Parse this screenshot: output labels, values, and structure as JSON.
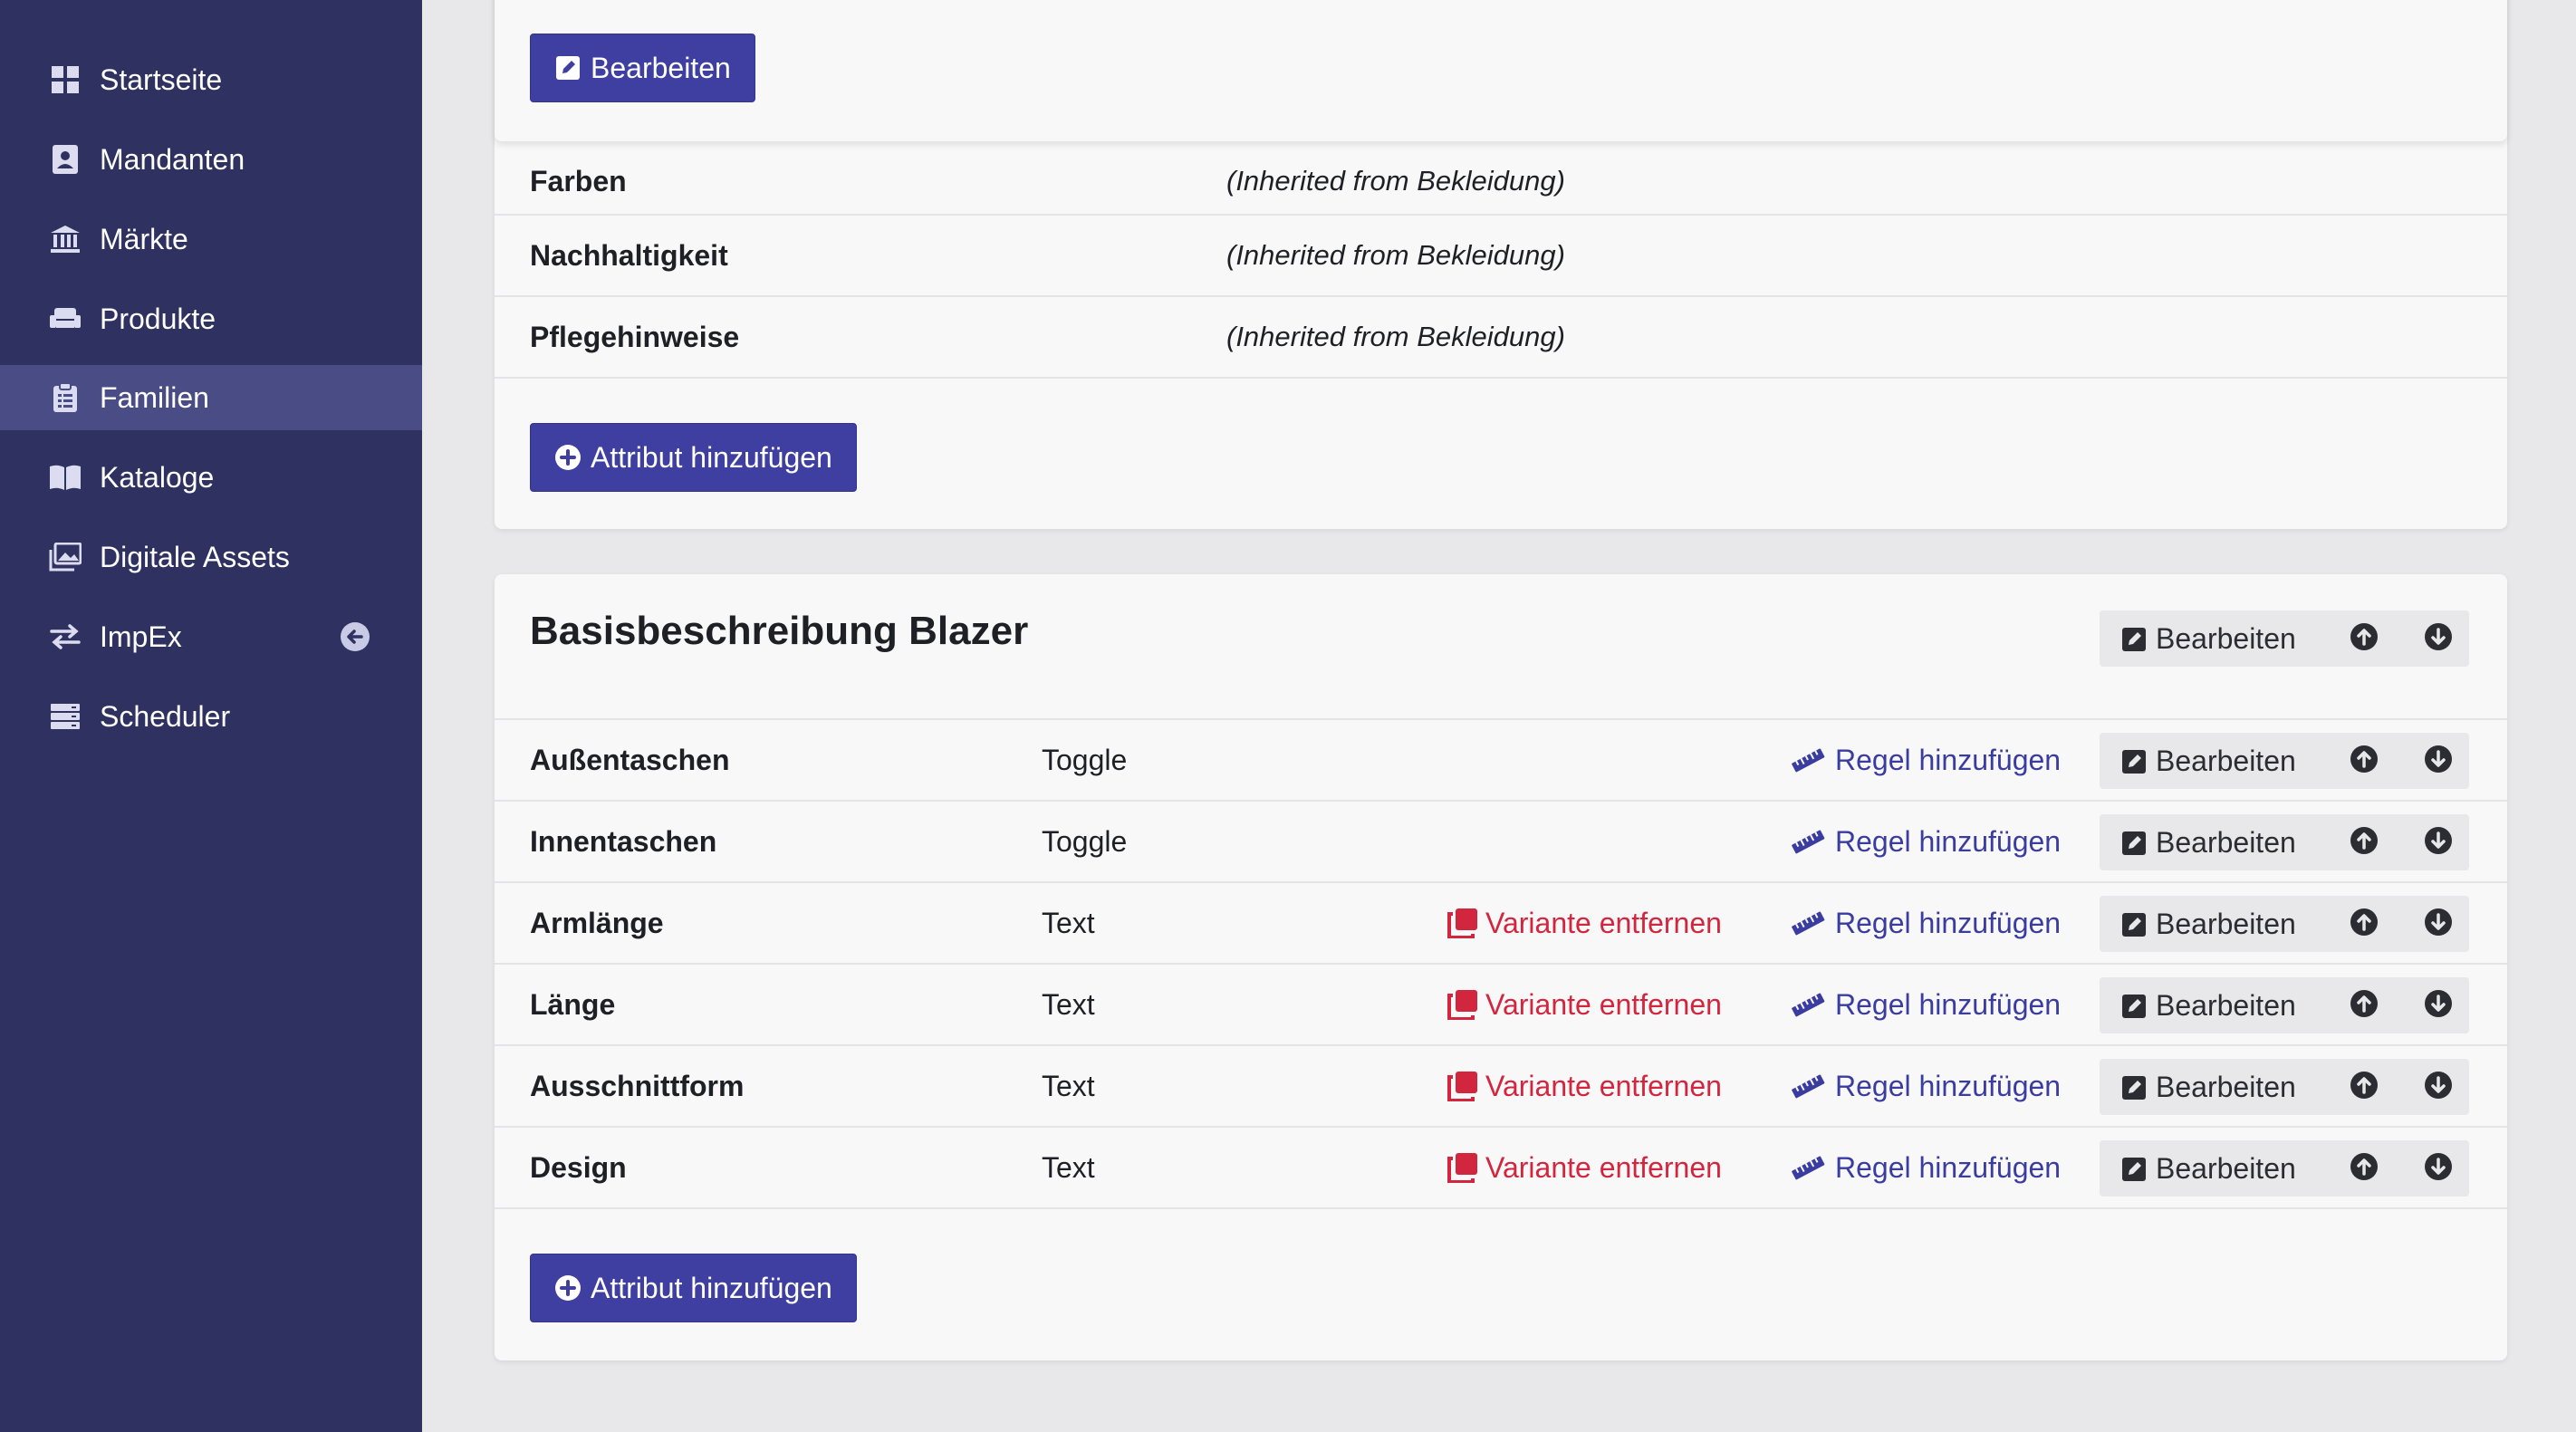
{
  "sidebar": {
    "items": [
      {
        "label": "Startseite",
        "icon": "dashboard-icon"
      },
      {
        "label": "Mandanten",
        "icon": "contact-book-icon"
      },
      {
        "label": "Märkte",
        "icon": "bank-icon"
      },
      {
        "label": "Produkte",
        "icon": "sofa-icon"
      },
      {
        "label": "Familien",
        "icon": "clipboard-list-icon",
        "active": true
      },
      {
        "label": "Kataloge",
        "icon": "open-book-icon"
      },
      {
        "label": "Digitale Assets",
        "icon": "images-icon"
      },
      {
        "label": "ImpEx",
        "icon": "arrows-exchange-icon",
        "collapse_icon": "arrow-circle-left-icon"
      },
      {
        "label": "Scheduler",
        "icon": "server-icon"
      }
    ]
  },
  "section1": {
    "edit_label": "Bearbeiten",
    "rows": [
      {
        "name": "Farben",
        "note": "(Inherited from Bekleidung)"
      },
      {
        "name": "Nachhaltigkeit",
        "note": "(Inherited from Bekleidung)"
      },
      {
        "name": "Pflegehinweise",
        "note": "(Inherited from Bekleidung)"
      }
    ],
    "add_attribute_label": "Attribut hinzufügen"
  },
  "section2": {
    "title": "Basisbeschreibung Blazer",
    "edit_label": "Bearbeiten",
    "rows": [
      {
        "name": "Außentaschen",
        "type": "Toggle",
        "remove_variant": "",
        "add_rule": "Regel hinzufügen",
        "edit": "Bearbeiten"
      },
      {
        "name": "Innentaschen",
        "type": "Toggle",
        "remove_variant": "",
        "add_rule": "Regel hinzufügen",
        "edit": "Bearbeiten"
      },
      {
        "name": "Armlänge",
        "type": "Text",
        "remove_variant": "Variante entfernen",
        "add_rule": "Regel hinzufügen",
        "edit": "Bearbeiten"
      },
      {
        "name": "Länge",
        "type": "Text",
        "remove_variant": "Variante entfernen",
        "add_rule": "Regel hinzufügen",
        "edit": "Bearbeiten"
      },
      {
        "name": "Ausschnittform",
        "type": "Text",
        "remove_variant": "Variante entfernen",
        "add_rule": "Regel hinzufügen",
        "edit": "Bearbeiten"
      },
      {
        "name": "Design",
        "type": "Text",
        "remove_variant": "Variante entfernen",
        "add_rule": "Regel hinzufügen",
        "edit": "Bearbeiten"
      }
    ],
    "add_attribute_label": "Attribut hinzufügen"
  },
  "colors": {
    "sidebar_bg": "#2f3160",
    "sidebar_active": "#4a4c85",
    "primary": "#3e3fa0",
    "danger": "#d2263f",
    "page_bg": "#e8e8ea"
  }
}
